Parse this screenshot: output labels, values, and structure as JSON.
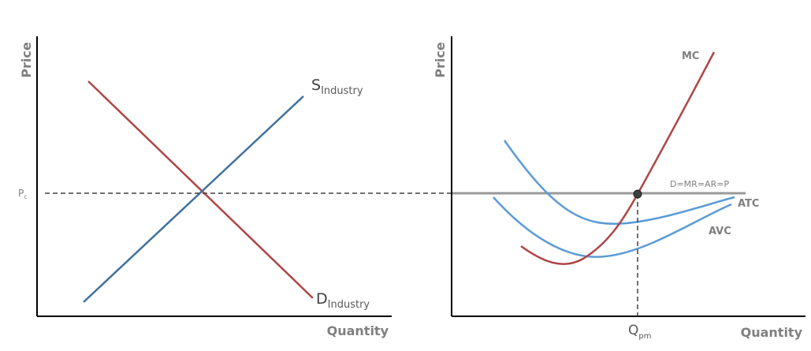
{
  "colors": {
    "supply": "#41719c",
    "demand": "#b04545",
    "cost_curve": "#5b9bd5",
    "marginal_cost": "#b04545",
    "price_line": "#999999",
    "axis": "#000000",
    "dashed": "#404040",
    "label": "#7f7f7f"
  },
  "industry": {
    "y_axis_label": "Price",
    "x_axis_label": "Quantity",
    "price_label_main": "P",
    "price_label_sub": "c",
    "supply_label_main": "S",
    "supply_label_sub": "Industry",
    "demand_label_main": "D",
    "demand_label_sub": "Industry"
  },
  "firm": {
    "y_axis_label": "Price",
    "x_axis_label": "Quantity",
    "mc_label": "MC",
    "atc_label": "ATC",
    "avc_label": "AVC",
    "price_line_label": "D=MR=AR=P",
    "quantity_label_main": "Q",
    "quantity_label_sub": "pm"
  }
}
